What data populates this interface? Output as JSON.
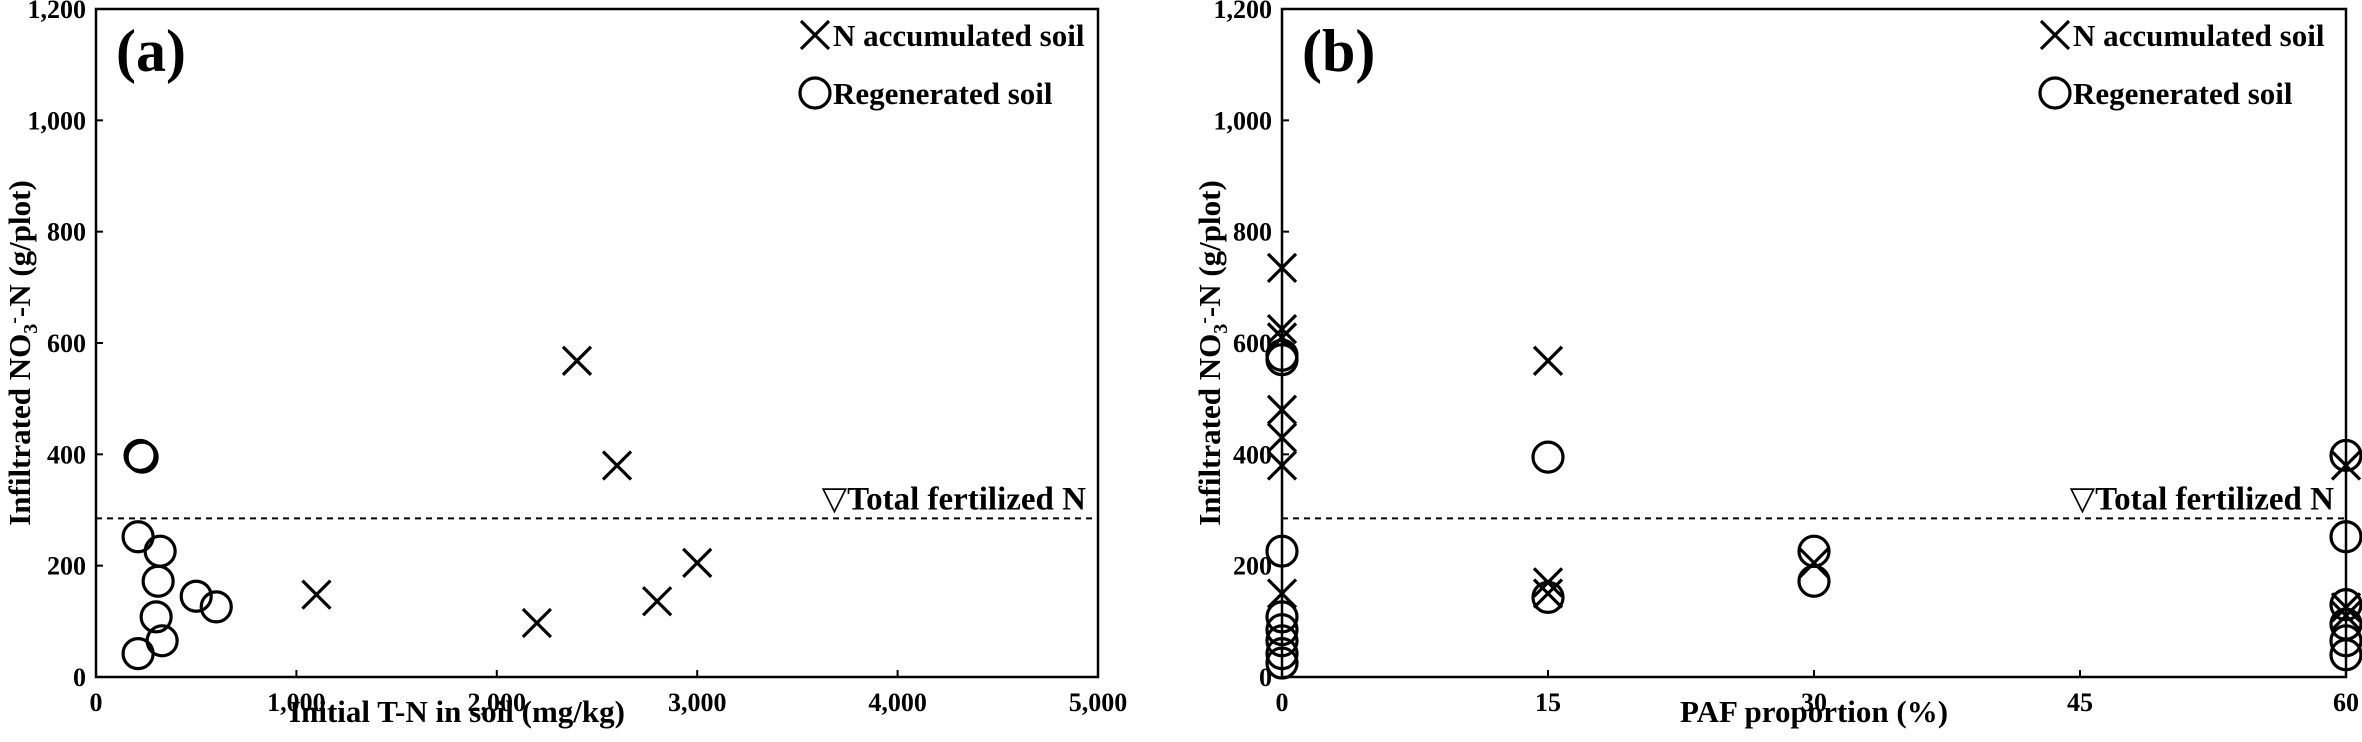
{
  "chart_data": [
    {
      "type": "scatter",
      "panel_label": "(a)",
      "xlabel": "Initial  T-N in soil (mg/kg)",
      "ylabel": {
        "prefix": "Infiltrated  NO",
        "sub": "3",
        "sup": "-",
        "suffix": "-N (g/plot)"
      },
      "xlim": [
        0,
        5000
      ],
      "ylim": [
        0,
        1200
      ],
      "x_ticks": [
        0,
        1000,
        2000,
        3000,
        4000,
        5000
      ],
      "x_tick_labels": [
        "0",
        "1,000",
        "2,000",
        "3,000",
        "4,000",
        "5,000"
      ],
      "y_ticks": [
        0,
        200,
        400,
        600,
        800,
        1000,
        1200
      ],
      "y_tick_labels": [
        "0",
        "200",
        "400",
        "600",
        "800",
        "1,000",
        "1,200"
      ],
      "grid": false,
      "legend_position": "top-right",
      "reference_line": {
        "y": 285,
        "label": "▽Total fertilized  N",
        "style": "dashed"
      },
      "series": [
        {
          "name": "N accumulated soil",
          "marker": "x",
          "points": [
            [
              1100,
              148
            ],
            [
              2200,
              97
            ],
            [
              2400,
              568
            ],
            [
              2600,
              380
            ],
            [
              2800,
              136
            ],
            [
              3000,
              205
            ]
          ]
        },
        {
          "name": "Regenerated soil",
          "marker": "o",
          "points": [
            [
              220,
              398
            ],
            [
              230,
              395
            ],
            [
              210,
              252
            ],
            [
              320,
              226
            ],
            [
              310,
              172
            ],
            [
              300,
              108
            ],
            [
              330,
              65
            ],
            [
              210,
              42
            ],
            [
              500,
              145
            ],
            [
              600,
              126
            ]
          ]
        }
      ]
    },
    {
      "type": "scatter",
      "panel_label": "(b)",
      "xlabel": "PAF proportion  (%)",
      "ylabel": {
        "prefix": "Infiltrated  NO",
        "sub": "3",
        "sup": "-",
        "suffix": "-N (g/plot)"
      },
      "xlim": [
        0,
        60
      ],
      "ylim": [
        0,
        1200
      ],
      "x_ticks": [
        0,
        15,
        30,
        45,
        60
      ],
      "x_tick_labels": [
        "0",
        "15",
        "30",
        "45",
        "60"
      ],
      "y_ticks": [
        0,
        200,
        400,
        600,
        800,
        1000,
        1200
      ],
      "y_tick_labels": [
        "0",
        "200",
        "400",
        "600",
        "800",
        "1,000",
        "1,200"
      ],
      "grid": false,
      "legend_position": "top-right",
      "reference_line": {
        "y": 285,
        "label": "▽Total fertilized  N",
        "style": "dashed"
      },
      "series": [
        {
          "name": "N accumulated soil",
          "marker": "x",
          "points": [
            [
              0,
              735
            ],
            [
              0,
              625
            ],
            [
              0,
              610
            ],
            [
              0,
              480
            ],
            [
              0,
              430
            ],
            [
              0,
              380
            ],
            [
              0,
              150
            ],
            [
              15,
              568
            ],
            [
              15,
              170
            ],
            [
              15,
              150
            ],
            [
              30,
              205
            ],
            [
              60,
              380
            ],
            [
              60,
              125
            ],
            [
              60,
              110
            ]
          ]
        },
        {
          "name": "Regenerated soil",
          "marker": "o",
          "points": [
            [
              0,
              578
            ],
            [
              0,
              570
            ],
            [
              0,
              226
            ],
            [
              0,
              108
            ],
            [
              0,
              85
            ],
            [
              0,
              65
            ],
            [
              0,
              42
            ],
            [
              0,
              25
            ],
            [
              15,
              395
            ],
            [
              15,
              143
            ],
            [
              30,
              226
            ],
            [
              30,
              172
            ],
            [
              60,
              398
            ],
            [
              60,
              252
            ],
            [
              60,
              130
            ],
            [
              60,
              95
            ],
            [
              60,
              65
            ],
            [
              60,
              40
            ]
          ]
        }
      ]
    }
  ]
}
